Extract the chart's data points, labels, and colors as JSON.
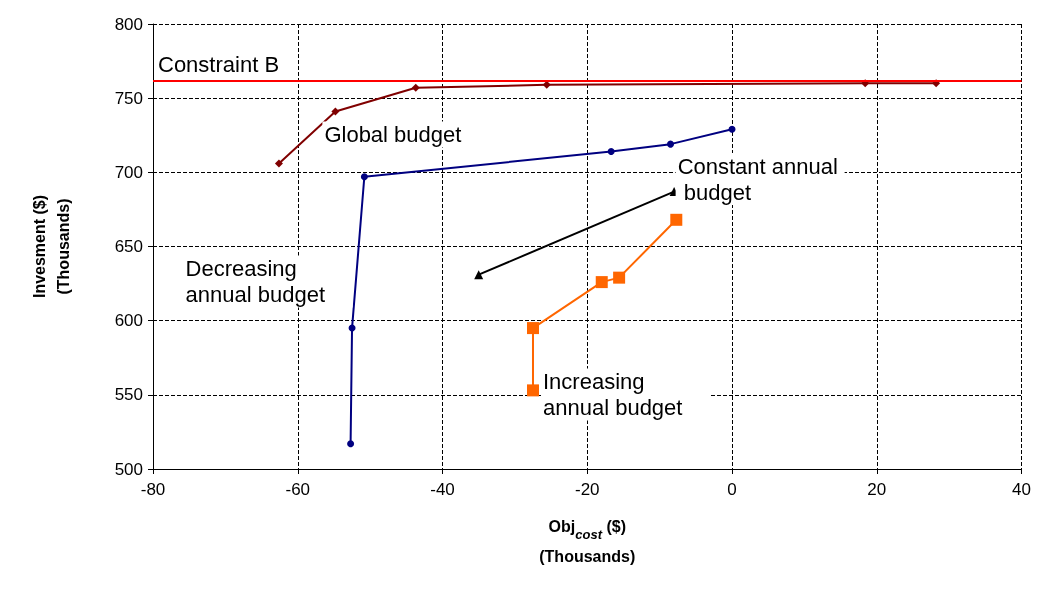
{
  "chart_data": {
    "type": "line",
    "xlabel": "Obj$_{cost}$ ($)\n(Thousands)",
    "ylabel": "Invesment ($)\n(Thousands)",
    "xlim": [
      -80,
      40
    ],
    "xticks": [
      -80,
      -60,
      -40,
      -20,
      0,
      20,
      40
    ],
    "ylim": [
      500,
      800
    ],
    "yticks": [
      500,
      550,
      600,
      650,
      700,
      750,
      800
    ],
    "grid": true,
    "legend": false,
    "series": [
      {
        "name": "Global budget",
        "color": "#800000",
        "marker": "diamond",
        "x": [
          -62.6,
          -54.8,
          -43.7,
          -25.6,
          18.4,
          28.2
        ],
        "values": [
          706,
          741,
          757,
          759,
          760,
          760
        ]
      },
      {
        "name": "Decreasing annual budget",
        "color": "#000080",
        "marker": "circle",
        "x": [
          -52.7,
          -52.5,
          -50.8,
          -16.7,
          -8.5,
          0
        ],
        "values": [
          517,
          595,
          697,
          714,
          719,
          729
        ]
      },
      {
        "name": "Constant annual budget",
        "color": "#000000",
        "marker": "triangle",
        "x": [
          -35,
          -8
        ],
        "values": [
          631,
          687
        ]
      },
      {
        "name": "Increasing annual budget",
        "color": "#ff6600",
        "marker": "square",
        "x": [
          -27.5,
          -27.5,
          -18,
          -15.6,
          -7.7
        ],
        "values": [
          553,
          595,
          626,
          629,
          668
        ]
      }
    ],
    "ref_lines": [
      {
        "axis": "y",
        "value": 762,
        "label": "Constraint B",
        "color": "#ff0000",
        "line_style": "solid"
      }
    ]
  }
}
